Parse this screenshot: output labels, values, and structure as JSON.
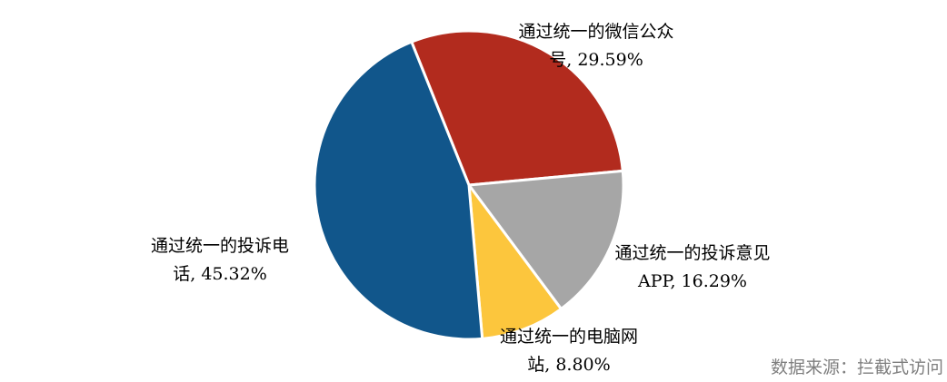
{
  "chart_data": {
    "type": "pie",
    "values": [
      29.59,
      16.29,
      8.8,
      45.32
    ],
    "value_labels": [
      "通过统一的微信公众号, 29.59%",
      "通过统一的投诉意见APP, 16.29%",
      "通过统一的电脑网站, 8.80%",
      "通过统一的投诉电话, 45.32%"
    ],
    "colors": [
      "#b22b1e",
      "#a6a6a6",
      "#fcc63d",
      "#11568b"
    ],
    "source": "数据来源：拦截式访问"
  }
}
